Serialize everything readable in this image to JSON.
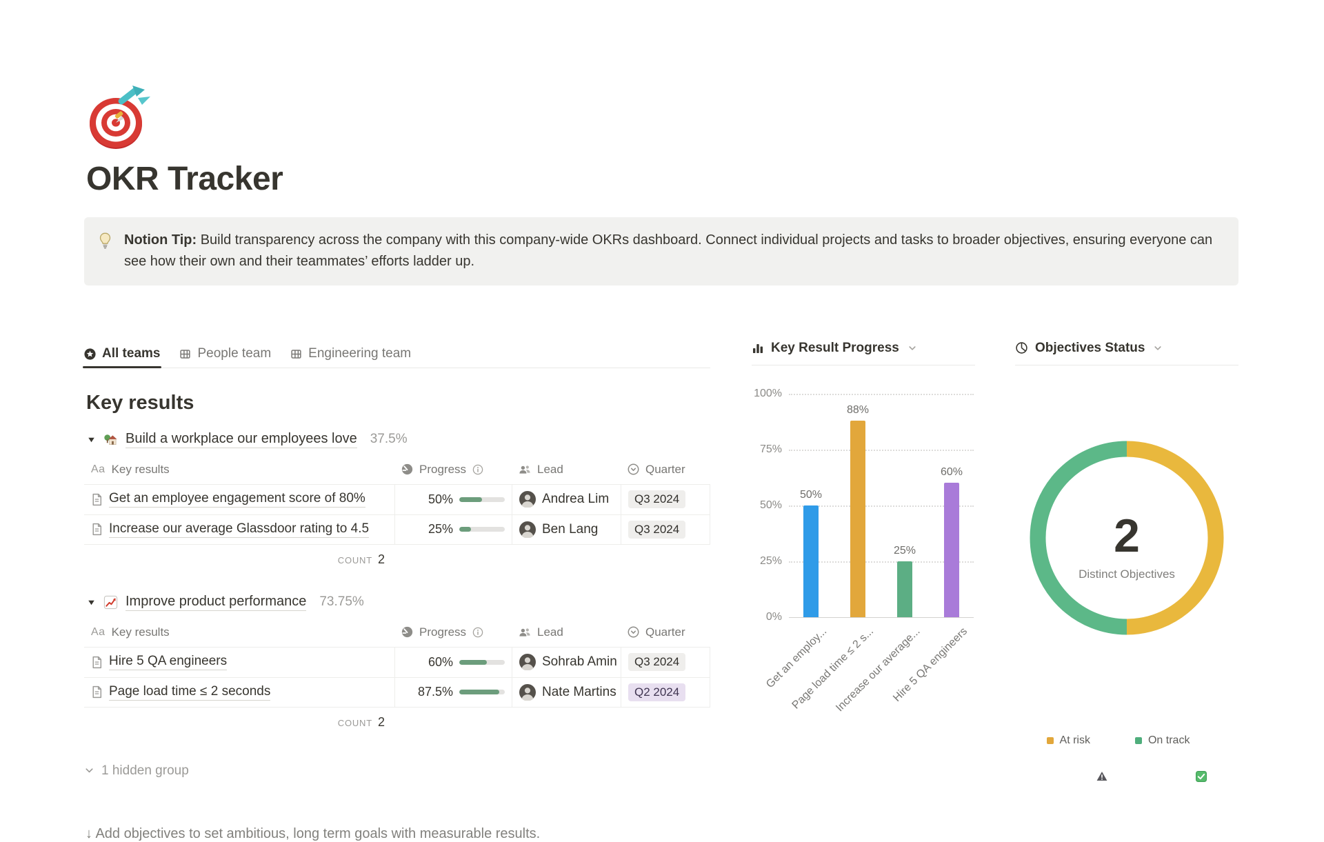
{
  "page": {
    "title": "OKR Tracker",
    "icon": "target-dart-emoji"
  },
  "callout": {
    "icon": "light-bulb-emoji",
    "bold": "Notion Tip:",
    "text": "Build transparency across the company with this company-wide OKRs dashboard. Connect individual projects and tasks to broader objectives, ensuring everyone can see how their own and their teammates’ efforts ladder up."
  },
  "tabs": [
    {
      "label": "All teams",
      "icon": "star-circle-icon",
      "active": true
    },
    {
      "label": "People team",
      "icon": "table-icon",
      "active": false
    },
    {
      "label": "Engineering team",
      "icon": "table-icon",
      "active": false
    }
  ],
  "key_results": {
    "heading": "Key results",
    "columns": {
      "name": "Key results",
      "name_icon": "text-icon",
      "progress": "Progress",
      "progress_icon": "gauge-icon",
      "info_icon": "info-icon",
      "lead": "Lead",
      "lead_icon": "people-icon",
      "quarter": "Quarter",
      "quarter_icon": "select-icon"
    },
    "groups": [
      {
        "icon": "house-garden-emoji",
        "title": "Build a workplace our employees love",
        "percent": "37.5%",
        "count_label": "COUNT",
        "count": "2",
        "rows": [
          {
            "name": "Get an employee engagement score of 80%",
            "progress": "50%",
            "progress_value": 50,
            "lead": "Andrea Lim",
            "quarter": "Q3 2024",
            "quarter_color": "gray"
          },
          {
            "name": "Increase our average Glassdoor rating to 4.5",
            "progress": "25%",
            "progress_value": 25,
            "lead": "Ben Lang",
            "quarter": "Q3 2024",
            "quarter_color": "gray"
          }
        ]
      },
      {
        "icon": "chart-increasing-emoji",
        "title": "Improve product performance",
        "percent": "73.75%",
        "count_label": "COUNT",
        "count": "2",
        "rows": [
          {
            "name": "Hire 5 QA engineers",
            "progress": "60%",
            "progress_value": 60,
            "lead": "Sohrab Amin",
            "quarter": "Q3 2024",
            "quarter_color": "gray"
          },
          {
            "name": "Page load time ≤ 2 seconds",
            "progress": "87.5%",
            "progress_value": 87.5,
            "lead": "Nate Martins",
            "quarter": "Q2 2024",
            "quarter_color": "purple"
          }
        ]
      }
    ],
    "hidden_group": "1 hidden group"
  },
  "footer_hint": "↓ Add objectives to set ambitious, long term goals with measurable results.",
  "chart_data": [
    {
      "type": "bar",
      "title": "Key Result Progress",
      "title_icon": "bar-chart-icon",
      "categories": [
        "Get an employ...",
        "Page load time ≤ 2 s...",
        "Increase our average...",
        "Hire 5 QA engineers"
      ],
      "values": [
        50,
        88,
        25,
        60
      ],
      "value_labels": [
        "50%",
        "88%",
        "25%",
        "60%"
      ],
      "bar_colors": [
        "#2F9BE8",
        "#E2A73B",
        "#5CAE84",
        "#A97BD9"
      ],
      "y_ticks": [
        100,
        75,
        50,
        25,
        0
      ],
      "y_tick_labels": [
        "100%",
        "75%",
        "50%",
        "25%",
        "0%"
      ],
      "ylim": [
        0,
        100
      ],
      "grid": "dotted-horizontal",
      "legend_position": "none"
    },
    {
      "type": "donut",
      "title": "Objectives Status",
      "title_icon": "pie-chart-icon",
      "center_value": "2",
      "center_label": "Distinct Objectives",
      "slices": [
        {
          "label": "At risk",
          "value": 1,
          "color": "#E9B83D"
        },
        {
          "label": "On track",
          "value": 1,
          "color": "#5CB888"
        }
      ],
      "legend": [
        {
          "label": "At risk",
          "marker": "warning-icon",
          "color": "#E2A73B"
        },
        {
          "label": "On track",
          "marker": "check-icon",
          "color": "#4FAE7C"
        }
      ],
      "legend_position": "bottom"
    }
  ]
}
